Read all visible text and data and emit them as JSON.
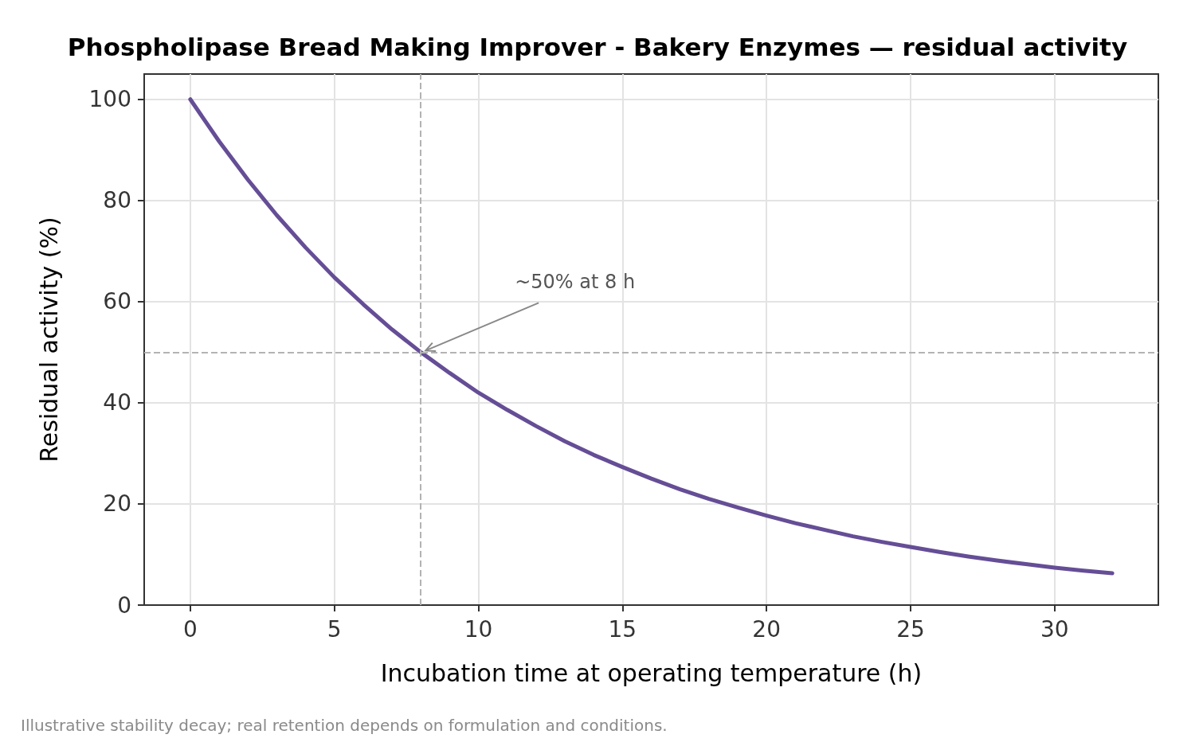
{
  "chart_data": {
    "type": "line",
    "title": "Phospholipase Bread Making Improver - Bakery Enzymes — residual activity",
    "xlabel": "Incubation time at operating temperature (h)",
    "ylabel": "Residual activity (%)",
    "x": [
      0,
      1,
      2,
      3,
      4,
      5,
      6,
      7,
      8,
      9,
      10,
      11,
      12,
      13,
      14,
      15,
      16,
      17,
      18,
      19,
      20,
      21,
      22,
      23,
      24,
      25,
      26,
      27,
      28,
      29,
      30,
      31,
      32
    ],
    "series": [
      {
        "color": "#654e96",
        "values": [
          100,
          91.7,
          84.1,
          77.1,
          70.7,
          64.8,
          59.5,
          54.5,
          50,
          45.9,
          42,
          38.6,
          35.4,
          32.4,
          29.7,
          27.3,
          25,
          22.9,
          21,
          19.3,
          17.7,
          16.2,
          14.9,
          13.6,
          12.5,
          11.5,
          10.5,
          9.6,
          8.8,
          8.1,
          7.4,
          6.8,
          6.3
        ]
      }
    ],
    "xlim": [
      -1.6,
      33.6
    ],
    "xticks": [
      0,
      5,
      10,
      15,
      20,
      25,
      30
    ],
    "ylim": [
      0,
      105
    ],
    "yticks": [
      0,
      20,
      40,
      60,
      80,
      100
    ],
    "grid": true,
    "marker": "none",
    "line_style": "solid",
    "ref_lines": [
      {
        "axis": "x",
        "value": 8,
        "color": "#b3b3b3",
        "line_style": "dashed"
      },
      {
        "axis": "y",
        "value": 50,
        "color": "#b3b3b3",
        "line_style": "dashed"
      }
    ],
    "annotations": [
      {
        "text": "~50% at 8 h",
        "x": 8,
        "y": 50
      },
      "Illustrative stability decay; real retention depends on formulation and conditions."
    ]
  }
}
